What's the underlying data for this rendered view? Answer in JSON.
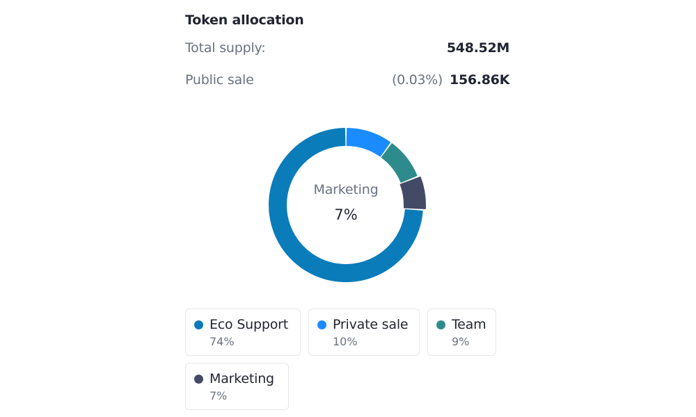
{
  "header": {
    "title": "Token allocation",
    "total_supply_label": "Total supply:",
    "total_supply_value": "548.52M",
    "public_sale_label": "Public sale",
    "public_sale_pct": "(0.03%)",
    "public_sale_value": "156.86K"
  },
  "donut": {
    "center_name": "Marketing",
    "center_value": "7%",
    "highlighted": "Marketing"
  },
  "legend": [
    {
      "name": "Eco Support",
      "pct": "74%",
      "color": "#0a7cba"
    },
    {
      "name": "Private sale",
      "pct": "10%",
      "color": "#1a8cff"
    },
    {
      "name": "Team",
      "pct": "9%",
      "color": "#2e8b8b"
    },
    {
      "name": "Marketing",
      "pct": "7%",
      "color": "#434a66"
    }
  ],
  "chart_data": {
    "type": "pie",
    "variant": "donut",
    "title": "Token allocation",
    "categories": [
      "Eco Support",
      "Private sale",
      "Team",
      "Marketing"
    ],
    "values": [
      74,
      10,
      9,
      7
    ],
    "unit": "%",
    "colors": [
      "#0a7cba",
      "#1a8cff",
      "#2e8b8b",
      "#434a66"
    ],
    "center_label": {
      "name": "Marketing",
      "value": "7%"
    },
    "highlighted_segment": "Marketing",
    "legend_position": "bottom",
    "total_supply": "548.52M",
    "public_sale": {
      "percent": "0.03%",
      "amount": "156.86K"
    }
  }
}
